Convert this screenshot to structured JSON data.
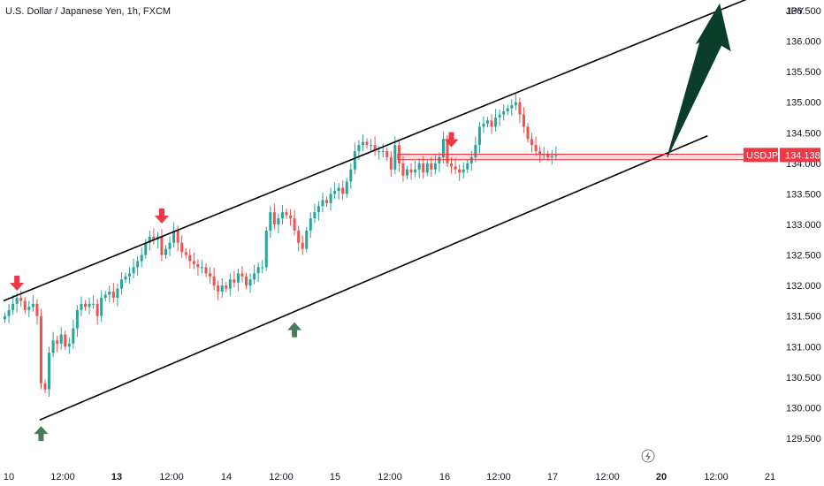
{
  "header": {
    "title": "U.S. Dollar / Japanese Yen, 1h, FXCM"
  },
  "chart_data": {
    "type": "candlestick",
    "symbol": "USDJPY",
    "axis_unit": "JPY",
    "last_price_label": "134.138",
    "ylim": [
      129.3,
      136.8
    ],
    "y_ticks": [
      "129.500",
      "130.000",
      "130.500",
      "131.000",
      "131.500",
      "132.000",
      "132.500",
      "133.000",
      "133.500",
      "134.000",
      "134.500",
      "135.000",
      "135.500",
      "136.000",
      "136.500"
    ],
    "x_ticks": [
      {
        "label": "10",
        "bold": false
      },
      {
        "label": "12:00",
        "bold": false
      },
      {
        "label": "13",
        "bold": true
      },
      {
        "label": "12:00",
        "bold": false
      },
      {
        "label": "14",
        "bold": false
      },
      {
        "label": "12:00",
        "bold": false
      },
      {
        "label": "15",
        "bold": false
      },
      {
        "label": "12:00",
        "bold": false
      },
      {
        "label": "16",
        "bold": false
      },
      {
        "label": "12:00",
        "bold": false
      },
      {
        "label": "17",
        "bold": false
      },
      {
        "label": "12:00",
        "bold": false
      },
      {
        "label": "20",
        "bold": true
      },
      {
        "label": "12:00",
        "bold": false
      },
      {
        "label": "21",
        "bold": false
      }
    ],
    "closes": [
      131.5,
      131.6,
      131.7,
      131.8,
      131.75,
      131.6,
      131.65,
      131.7,
      131.5,
      130.4,
      130.3,
      130.9,
      131.1,
      131.05,
      131.2,
      131.0,
      131.05,
      131.3,
      131.6,
      131.7,
      131.65,
      131.7,
      131.7,
      131.5,
      131.8,
      131.85,
      131.9,
      131.8,
      131.95,
      132.1,
      132.15,
      132.2,
      132.3,
      132.4,
      132.5,
      132.7,
      132.8,
      132.75,
      132.8,
      132.5,
      132.6,
      132.7,
      132.9,
      132.7,
      132.55,
      132.5,
      132.4,
      132.35,
      132.3,
      132.3,
      132.2,
      132.15,
      132.0,
      131.9,
      132.0,
      131.95,
      132.1,
      132.05,
      132.2,
      132.15,
      132.0,
      132.1,
      132.2,
      132.3,
      132.3,
      132.9,
      133.2,
      133.0,
      133.1,
      133.2,
      133.15,
      133.1,
      132.9,
      132.7,
      132.6,
      132.9,
      133.1,
      133.2,
      133.3,
      133.4,
      133.35,
      133.5,
      133.55,
      133.6,
      133.5,
      133.7,
      133.9,
      134.2,
      134.3,
      134.35,
      134.3,
      134.3,
      134.2,
      134.2,
      134.2,
      134.1,
      133.9,
      134.3,
      134.0,
      133.8,
      133.9,
      133.85,
      133.9,
      134.0,
      133.85,
      134.0,
      133.9,
      134.0,
      134.1,
      134.4,
      134.0,
      133.95,
      133.9,
      133.85,
      133.9,
      134.0,
      134.1,
      134.3,
      134.6,
      134.65,
      134.7,
      134.6,
      134.75,
      134.8,
      134.85,
      134.9,
      134.95,
      135.0,
      134.8,
      134.6,
      134.4,
      134.3,
      134.2,
      134.15,
      134.15,
      134.1,
      134.12,
      134.138
    ],
    "annotations": {
      "channel_upper": {
        "start": {
          "x": 0,
          "y": 131.75
        },
        "end": {
          "x": 186,
          "y": 136.72
        }
      },
      "channel_lower": {
        "start": {
          "x": 9,
          "y": 129.8
        },
        "end": {
          "x": 175,
          "y": 134.45
        }
      },
      "resistance_zone": {
        "x_start": 98,
        "x_end": 186,
        "y_low": 134.06,
        "y_high": 134.15
      },
      "down_markers": [
        {
          "x": 3,
          "y": 131.9
        },
        {
          "x": 39,
          "y": 133.0
        },
        {
          "x": 111,
          "y": 134.25
        }
      ],
      "up_markers": [
        {
          "x": 9,
          "y": 129.7
        },
        {
          "x": 72,
          "y": 131.4
        }
      ],
      "forecast_arrow": {
        "from": {
          "x": 165,
          "y": 134.1
        },
        "to": {
          "x": 178,
          "y": 136.6
        }
      }
    }
  }
}
